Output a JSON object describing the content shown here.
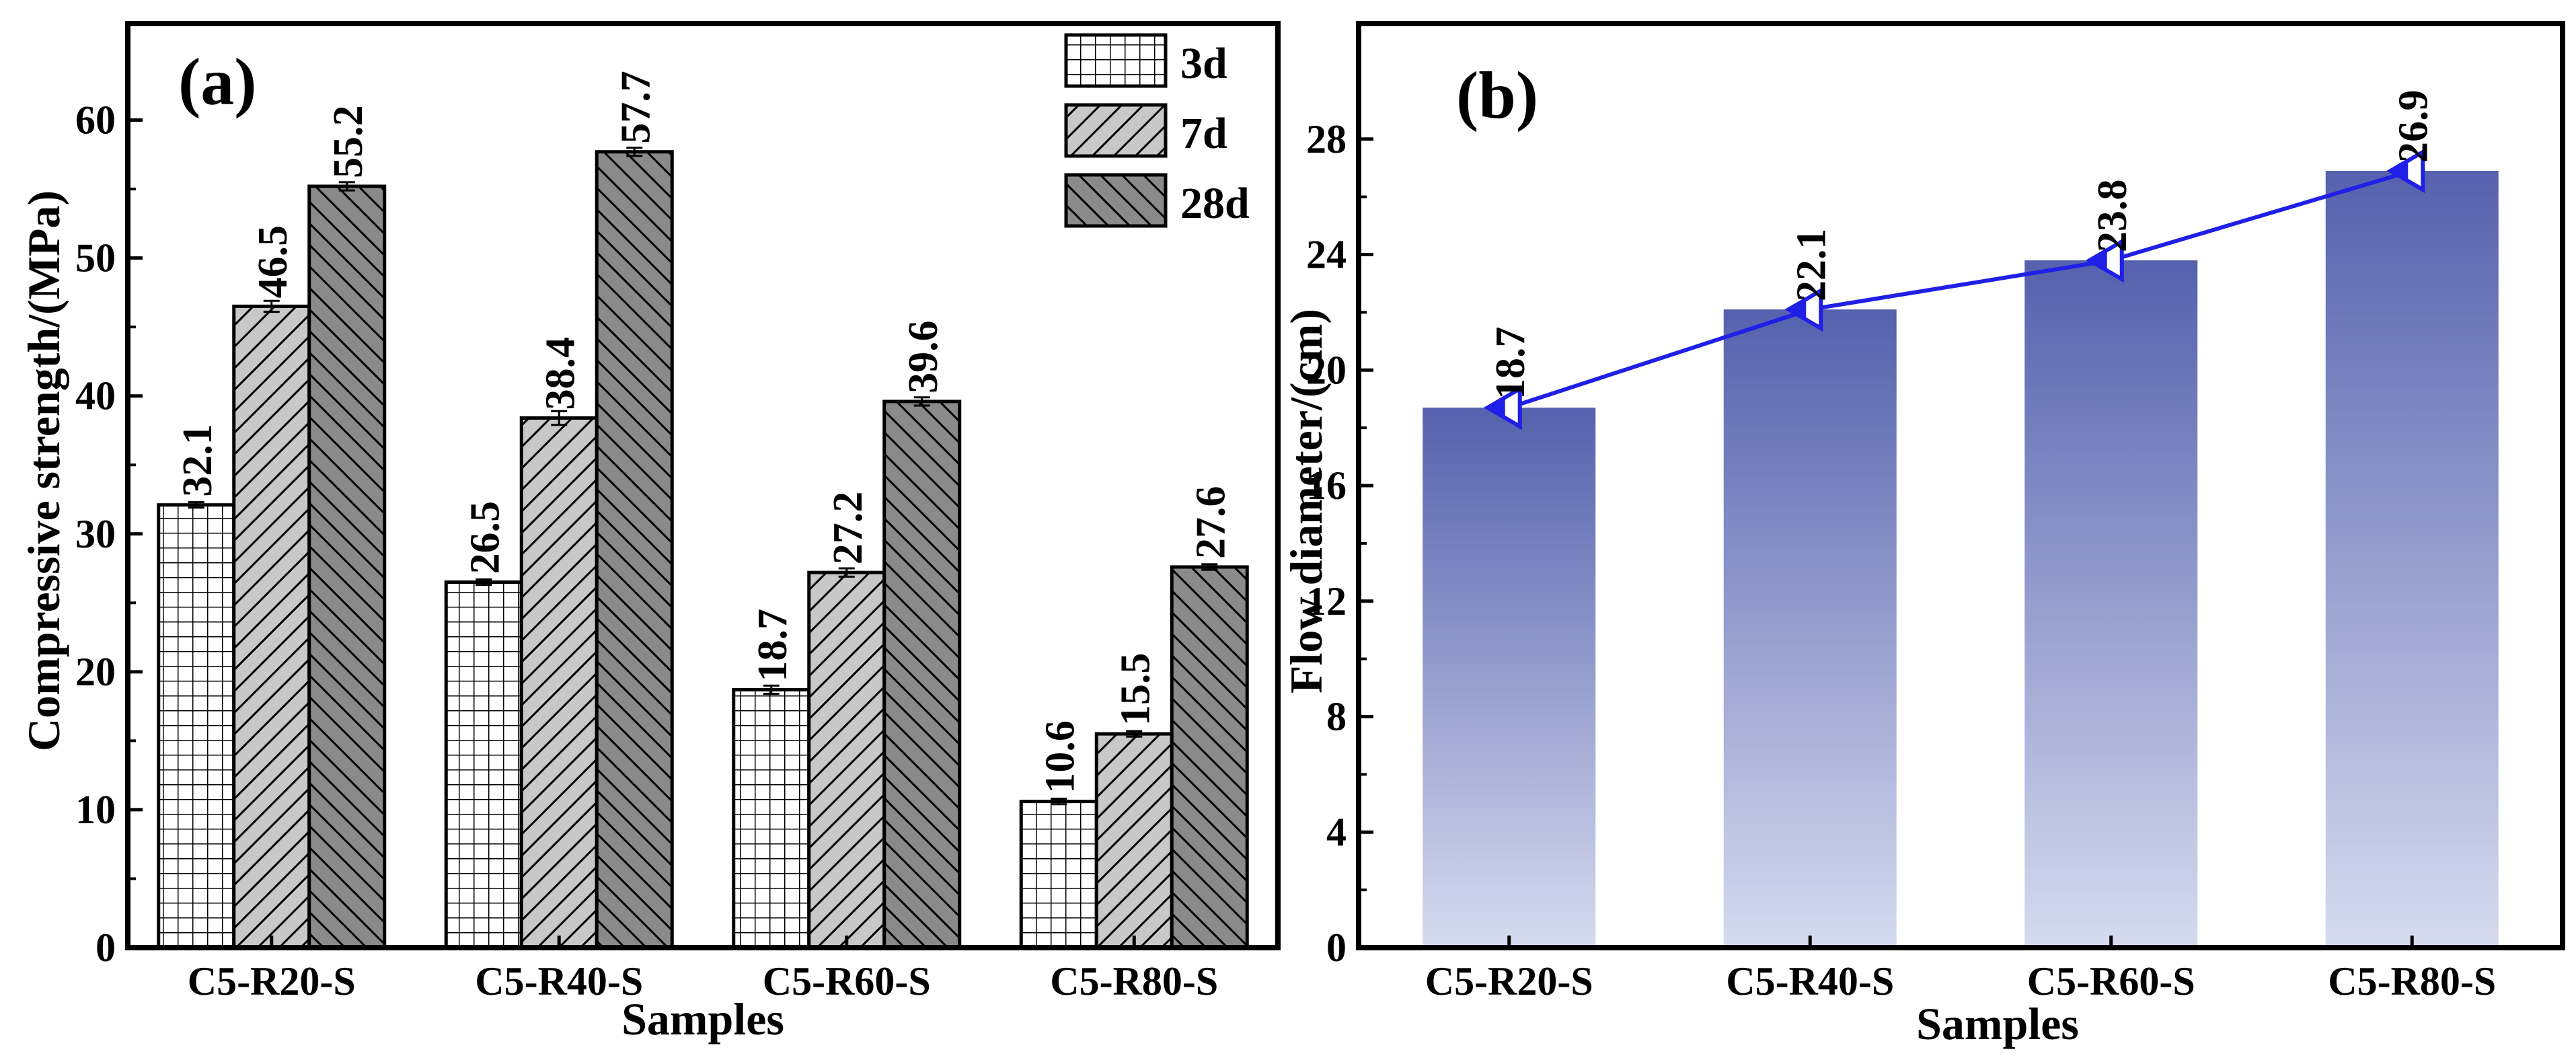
{
  "chart_data": [
    {
      "type": "bar",
      "panel_label": "(a)",
      "xlabel": "Samples",
      "ylabel": "Compressive strength/(MPa)",
      "categories": [
        "C5-R20-S",
        "C5-R40-S",
        "C5-R60-S",
        "C5-R80-S"
      ],
      "series": [
        {
          "name": "3d",
          "values": [
            32.1,
            26.5,
            18.7,
            10.6
          ],
          "labels": [
            "32.1",
            "26.5",
            "18.7",
            "10.6"
          ],
          "errors": [
            0.2,
            0.2,
            0.3,
            0.2
          ],
          "pattern": "grid",
          "fill": "#ffffff"
        },
        {
          "name": "7d",
          "values": [
            46.5,
            38.4,
            27.2,
            15.5
          ],
          "labels": [
            "46.5",
            "38.4",
            "27.2",
            "15.5"
          ],
          "errors": [
            0.4,
            0.5,
            0.3,
            0.2
          ],
          "pattern": "diag-right",
          "fill": "#c8c8c8"
        },
        {
          "name": "28d",
          "values": [
            55.2,
            57.7,
            39.6,
            27.6
          ],
          "labels": [
            "55.2",
            "57.7",
            "39.6",
            "27.6"
          ],
          "errors": [
            0.3,
            0.3,
            0.3,
            0.2
          ],
          "pattern": "diag-left",
          "fill": "#8a8a8a"
        }
      ],
      "ylim": [
        0,
        67
      ],
      "yticks": [
        0,
        10,
        20,
        30,
        40,
        50,
        60
      ],
      "ytick_labels": [
        "0",
        "10",
        "20",
        "30",
        "40",
        "50",
        "60"
      ],
      "legend": "top-right",
      "grid": false
    },
    {
      "type": "bar",
      "panel_label": "(b)",
      "xlabel": "Samples",
      "ylabel": "Flow diameter/(cm)",
      "categories": [
        "C5-R20-S",
        "C5-R40-S",
        "C5-R60-S",
        "C5-R80-S"
      ],
      "values": [
        18.7,
        22.1,
        23.8,
        26.9
      ],
      "value_labels": [
        "18.7",
        "22.1",
        "23.8",
        "26.9"
      ],
      "line_overlay": true,
      "line_color": "#1f1fe6",
      "bar_color_top": "#5561ad",
      "bar_color_bottom": "#d6dbef",
      "ylim": [
        0,
        32
      ],
      "yticks": [
        0,
        4,
        8,
        12,
        16,
        20,
        24,
        28
      ],
      "ytick_labels": [
        "0",
        "4",
        "8",
        "12",
        "16",
        "20",
        "24",
        "28"
      ],
      "grid": false
    }
  ]
}
